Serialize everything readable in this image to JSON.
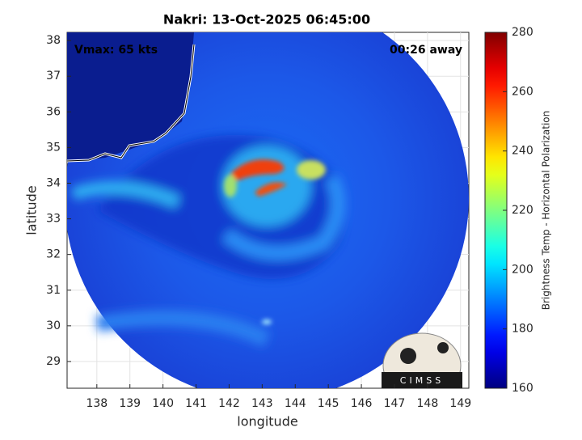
{
  "chart_data": {
    "type": "image",
    "title": "Nakri: 13-Oct-2025 06:45:00",
    "annotations": [
      "Vmax: 65 kts",
      "00:26 away"
    ],
    "xlabel": "longitude",
    "ylabel": "latitude",
    "xlim": [
      137.1,
      149.25
    ],
    "xticks": [
      138,
      139,
      140,
      141,
      142,
      143,
      144,
      145,
      146,
      147,
      148,
      149
    ],
    "ylim": [
      28.25,
      38.23
    ],
    "yticks": [
      29,
      30,
      31,
      32,
      33,
      34,
      35,
      36,
      37,
      38
    ],
    "grid": true,
    "colorbar": {
      "label": "Brightness Temp - Horizontal Polarization",
      "colormap": "jet",
      "clim": [
        160,
        280
      ],
      "ticks": [
        160,
        180,
        200,
        220,
        240,
        260,
        280
      ]
    },
    "logo_text": "CIMSS"
  }
}
